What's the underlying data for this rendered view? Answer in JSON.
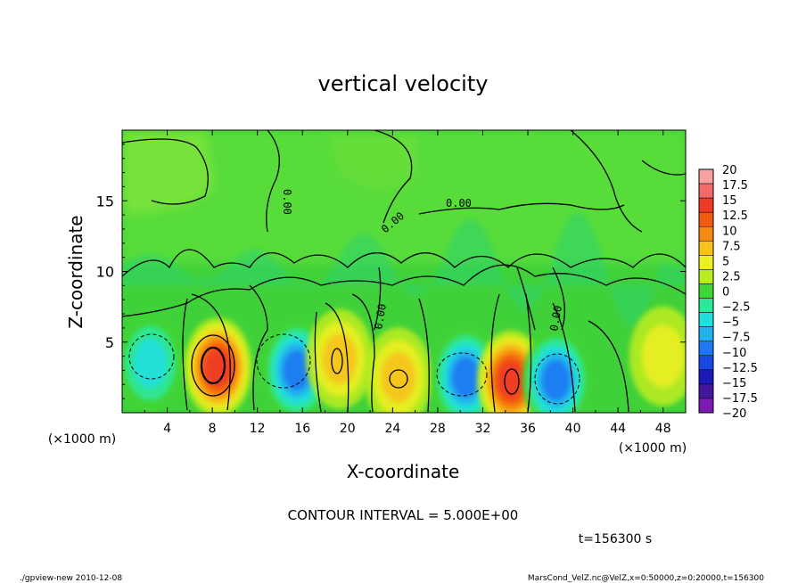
{
  "chart_data": {
    "type": "heatmap",
    "title": "vertical velocity",
    "xlabel": "X-coordinate",
    "ylabel": "Z-coordinate",
    "x_unit_left": "(×1000 m)",
    "x_unit_right": "(×1000 m)",
    "xlim": [
      0,
      50
    ],
    "ylim": [
      0,
      20
    ],
    "x_ticks": [
      4,
      8,
      12,
      16,
      20,
      24,
      28,
      32,
      36,
      40,
      44,
      48
    ],
    "y_ticks": [
      5,
      10,
      15
    ],
    "colorbar": {
      "levels": [
        "20",
        "17.5",
        "15",
        "12.5",
        "10",
        "7.5",
        "5",
        "2.5",
        "0",
        "−2.5",
        "−5",
        "−7.5",
        "−10",
        "−12.5",
        "−15",
        "−17.5",
        "−20"
      ],
      "colors": [
        "#f7a0a0",
        "#f46a6a",
        "#ef3a26",
        "#f25a10",
        "#f78a10",
        "#f7c21e",
        "#ecef24",
        "#b8ec20",
        "#42d436",
        "#2ee89a",
        "#22e0e0",
        "#22b2f0",
        "#1f78f2",
        "#1a46e6",
        "#1a1ab8",
        "#42169e",
        "#7a1ab0"
      ]
    },
    "contour_interval_text": "CONTOUR INTERVAL = 5.000E+00",
    "contour_labels": [
      "0.00",
      "0.00",
      "0.00",
      "0.00",
      "0.00"
    ],
    "cells": [
      {
        "x": 2.5,
        "z": 3.5,
        "w": -6
      },
      {
        "x": 8.5,
        "z": 3.2,
        "w": 14
      },
      {
        "x": 15.5,
        "z": 3.0,
        "w": -11
      },
      {
        "x": 19.3,
        "z": 3.8,
        "w": 6
      },
      {
        "x": 24.5,
        "z": 2.5,
        "w": 5
      },
      {
        "x": 30.5,
        "z": 2.5,
        "w": -12
      },
      {
        "x": 34.5,
        "z": 2.3,
        "w": 13
      },
      {
        "x": 38.5,
        "z": 2.3,
        "w": -12
      },
      {
        "x": 48.0,
        "z": 4.0,
        "w": 4
      }
    ],
    "time_label": "t=156300 s",
    "footer_left": "./gpview-new   2010-12-08",
    "footer_right": "MarsCond_VelZ.nc@VelZ,x=0:50000,z=0:20000,t=156300"
  }
}
